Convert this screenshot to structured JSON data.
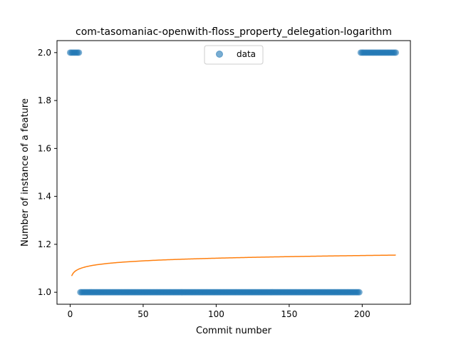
{
  "chart_data": {
    "type": "scatter",
    "title": "com-tasomaniac-openwith-floss_property_delegation-logarithm",
    "xlabel": "Commit number",
    "ylabel": "Number of instance of a feature",
    "xlim": [
      -9,
      233
    ],
    "ylim": [
      0.95,
      2.05
    ],
    "xticks": [
      0,
      50,
      100,
      150,
      200
    ],
    "yticks": [
      1.0,
      1.2,
      1.4,
      1.6,
      1.8,
      2.0
    ],
    "xtick_labels": [
      "0",
      "50",
      "100",
      "150",
      "200"
    ],
    "ytick_labels": [
      "1.0",
      "1.2",
      "1.4",
      "1.6",
      "1.8",
      "2.0"
    ],
    "legend": {
      "placement": "top-center",
      "entries": [
        "data"
      ]
    },
    "series": [
      {
        "name": "data",
        "kind": "scatter",
        "color": "#1f77b4",
        "segments": [
          {
            "x_start": 0,
            "x_end": 6,
            "y": 2.0
          },
          {
            "x_start": 7,
            "x_end": 198,
            "y": 1.0
          },
          {
            "x_start": 199,
            "x_end": 223,
            "y": 2.0
          }
        ]
      },
      {
        "kind": "line",
        "color": "#ff7f0e",
        "x_start": 1,
        "x_end": 223,
        "y_at_start": 1.068,
        "y_at_end": 1.155
      }
    ]
  }
}
